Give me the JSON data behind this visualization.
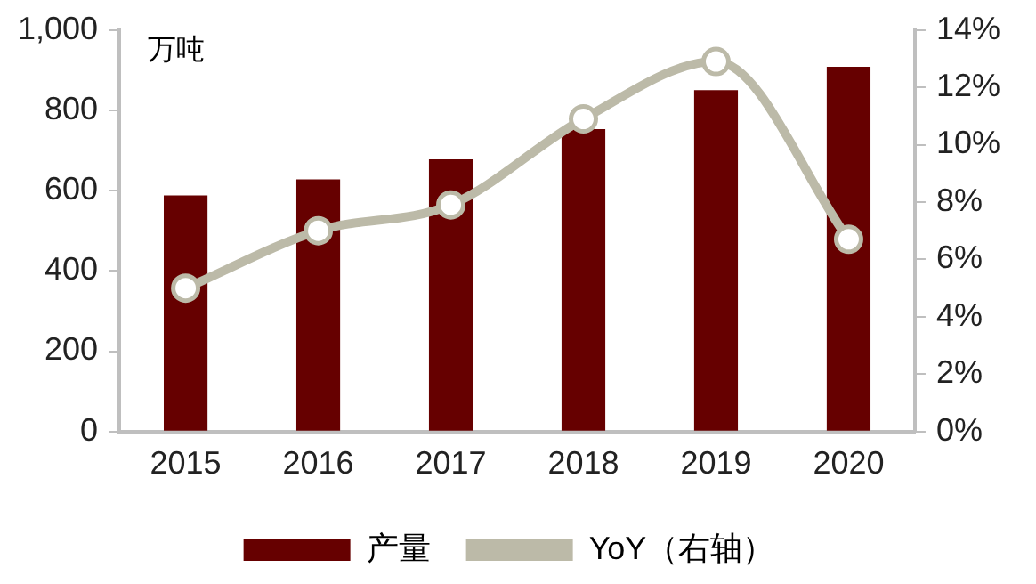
{
  "chart_data": {
    "type": "bar",
    "ylabel": "万吨",
    "categories": [
      "2015",
      "2016",
      "2017",
      "2018",
      "2019",
      "2020"
    ],
    "series": [
      {
        "name": "产量",
        "color": "#660000",
        "values": [
          588,
          628,
          678,
          753,
          850,
          908
        ]
      },
      {
        "name": "YoY（右轴）",
        "type": "line",
        "axis": "y2",
        "color": "#bcbaa8",
        "values": [
          5.0,
          7.0,
          7.9,
          10.9,
          12.9,
          6.7
        ]
      }
    ],
    "ylim": [
      0,
      1000
    ],
    "yticks": [
      0,
      {
        "value": 200,
        "label": "200"
      },
      {
        "value": 400,
        "label": "400"
      },
      {
        "value": 600,
        "label": "600"
      },
      {
        "value": 800,
        "label": "800"
      },
      {
        "value": 1000,
        "label": "1,000"
      }
    ],
    "y2lim": [
      0,
      14
    ],
    "y2ticks": [
      {
        "value": 0,
        "label": "0%"
      },
      {
        "value": 2,
        "label": "2%"
      },
      {
        "value": 4,
        "label": "4%"
      },
      {
        "value": 6,
        "label": "6%"
      },
      {
        "value": 8,
        "label": "8%"
      },
      {
        "value": 10,
        "label": "10%"
      },
      {
        "value": 12,
        "label": "12%"
      },
      {
        "value": 14,
        "label": "14%"
      }
    ],
    "grid": false,
    "legend": "bottom",
    "marker": "circle"
  }
}
